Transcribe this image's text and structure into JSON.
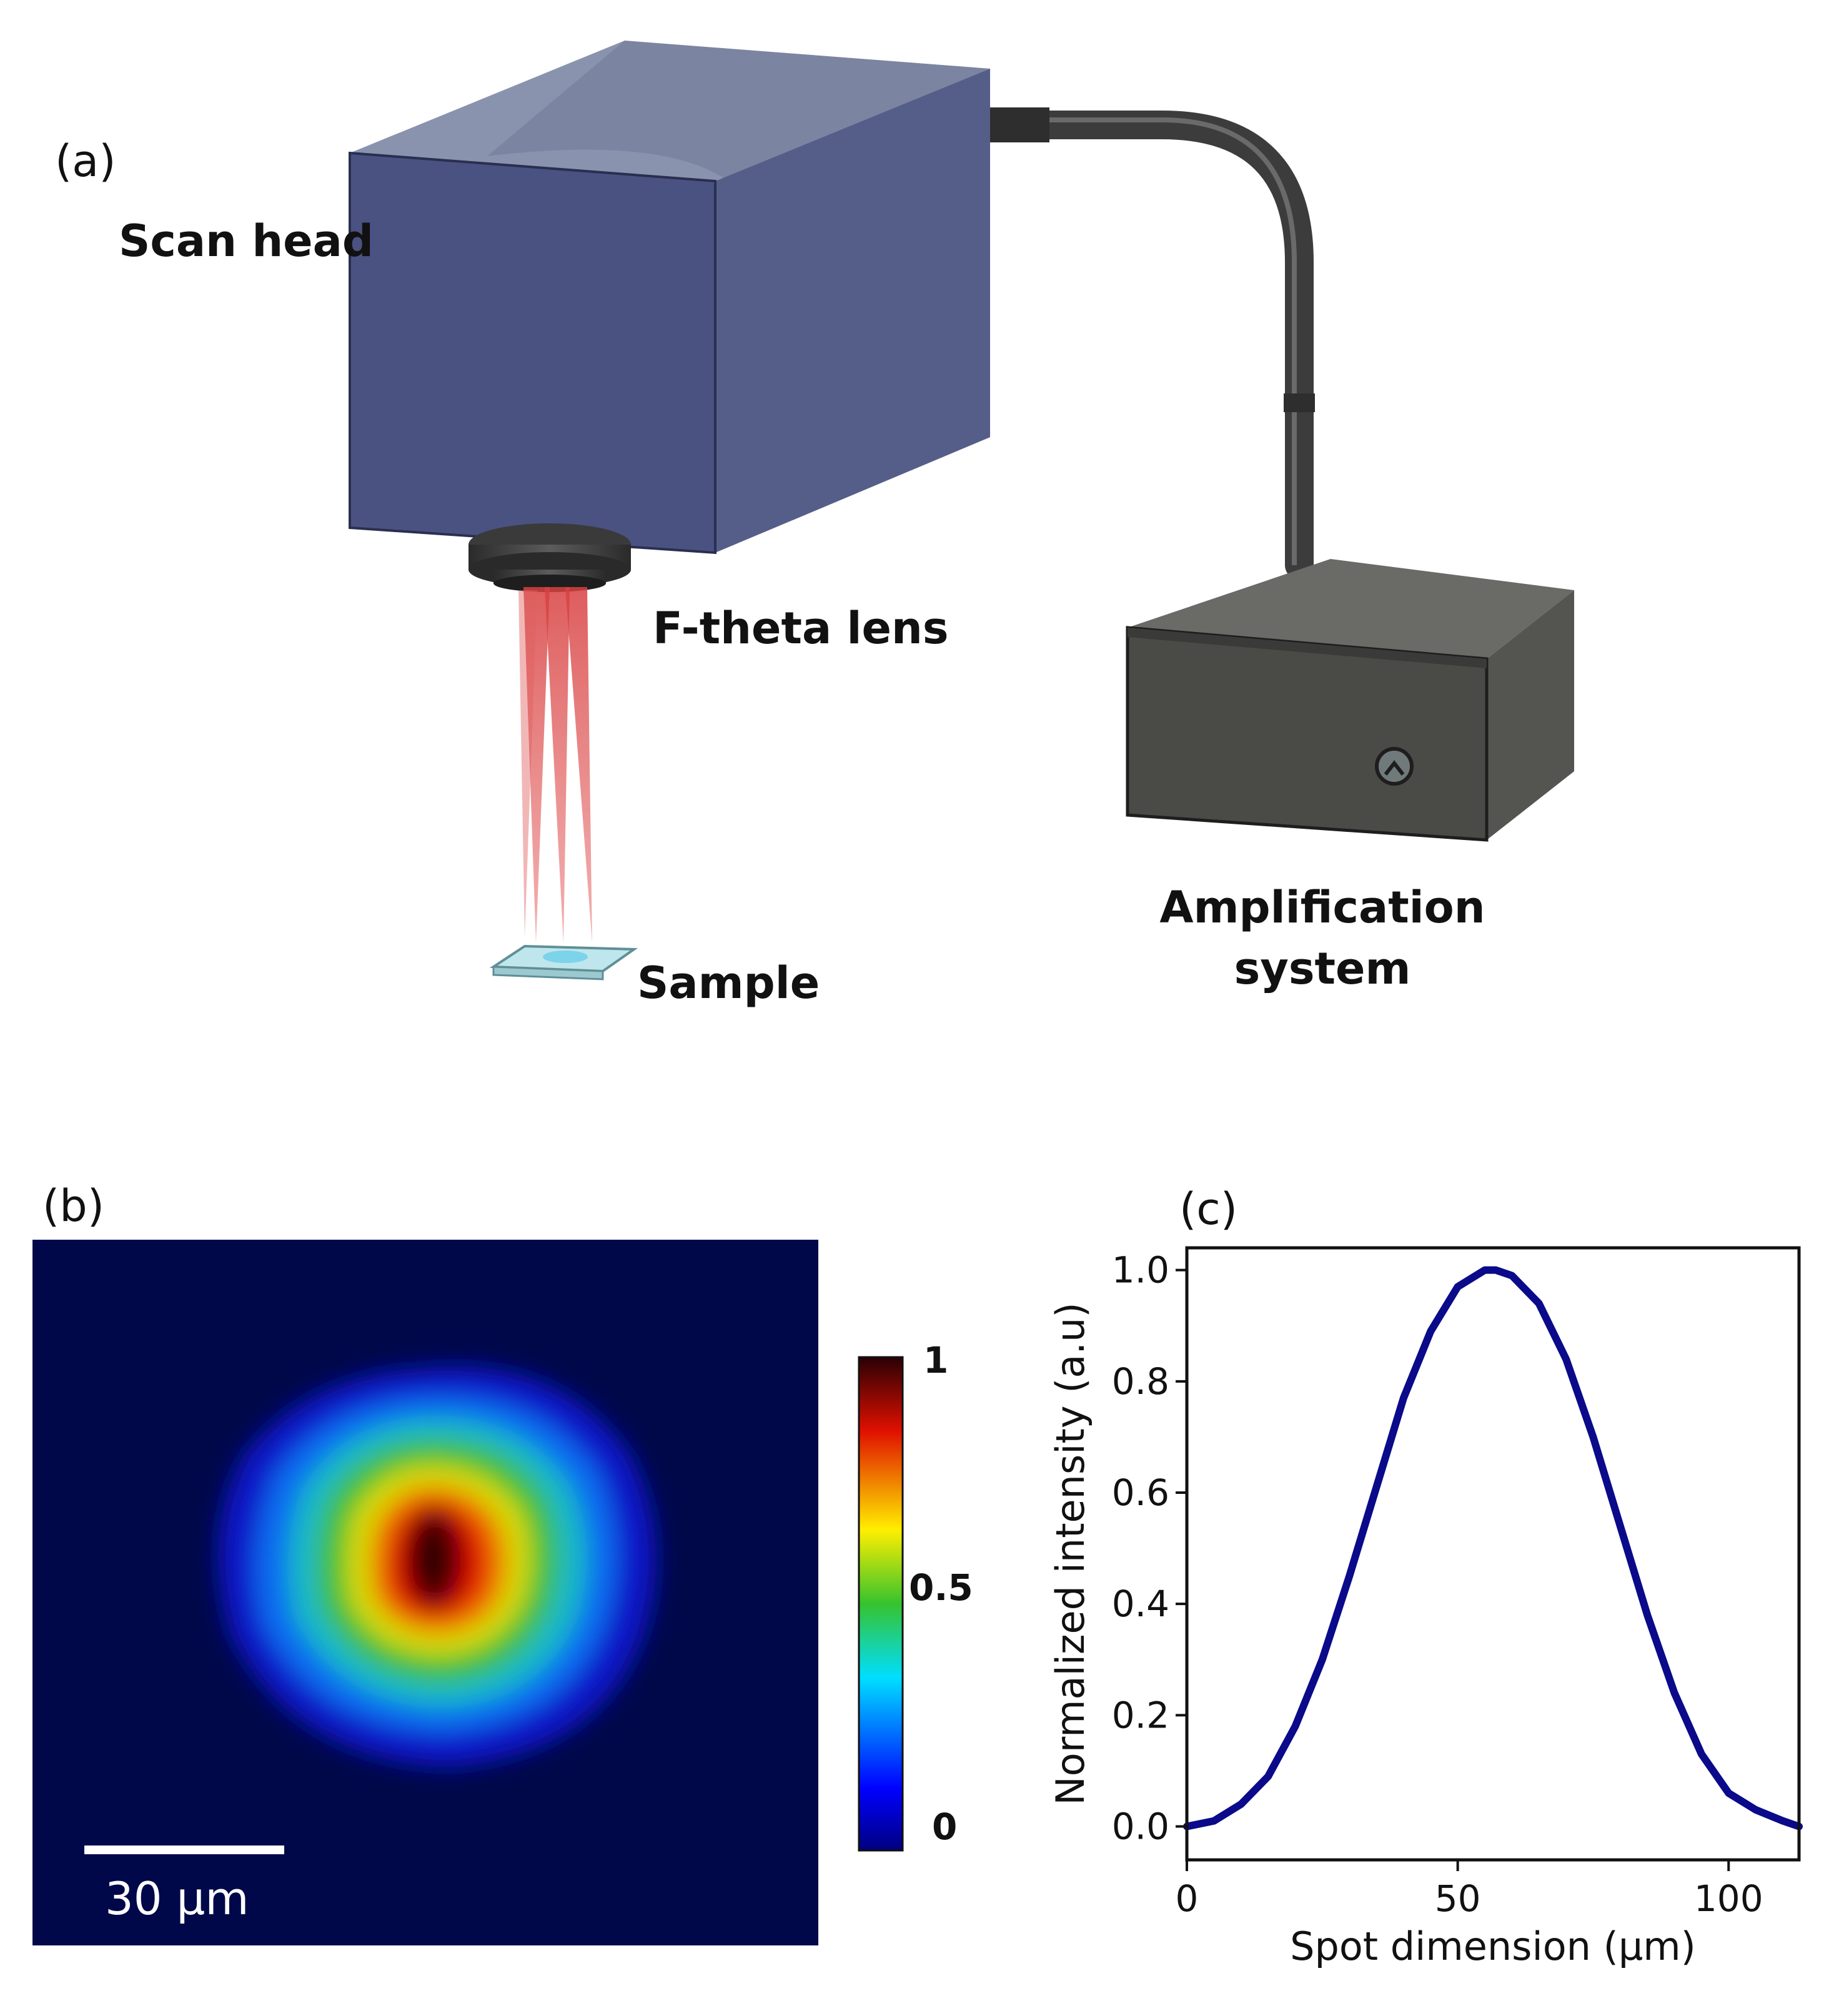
{
  "panel_a": {
    "letter": "(a)",
    "labels": {
      "scan_head": "Scan head",
      "f_theta_lens": "F-theta lens",
      "sample": "Sample",
      "amplification_line1": "Amplification",
      "amplification_line2": "system"
    },
    "colors": {
      "scan_head": "#4a5282",
      "amplifier": "#4a4a46",
      "beam": "#d84040",
      "cable": "#3c3c3c"
    }
  },
  "panel_b": {
    "letter": "(b)",
    "scale_bar_label": "30 µm",
    "colorbar_ticks": [
      "1",
      "0.5",
      "0"
    ],
    "colormap": "jet",
    "background_color": "#00084a"
  },
  "chart_data": {
    "type": "line",
    "panel_letter": "(c)",
    "title": "",
    "xlabel": "Spot dimension (µm)",
    "ylabel": "Normalized intensity (a.u)",
    "xlim": [
      0,
      113
    ],
    "ylim": [
      -0.06,
      1.04
    ],
    "xticks": [
      0,
      50,
      100
    ],
    "yticks": [
      0.0,
      0.2,
      0.4,
      0.6,
      0.8,
      1.0
    ],
    "xtick_labels": [
      "0",
      "50",
      "100"
    ],
    "ytick_labels": [
      "0.0",
      "0.2",
      "0.4",
      "0.6",
      "0.8",
      "1.0"
    ],
    "grid": false,
    "series": [
      {
        "color": "#0a0a8a",
        "x": [
          0,
          5,
          10,
          15,
          20,
          25,
          30,
          35,
          40,
          45,
          50,
          55,
          57,
          60,
          65,
          70,
          75,
          80,
          85,
          90,
          95,
          100,
          105,
          110,
          113
        ],
        "y": [
          0.0,
          0.01,
          0.04,
          0.09,
          0.18,
          0.3,
          0.45,
          0.61,
          0.77,
          0.89,
          0.97,
          1.0,
          1.0,
          0.99,
          0.94,
          0.84,
          0.7,
          0.54,
          0.38,
          0.24,
          0.13,
          0.06,
          0.03,
          0.01,
          0.0
        ]
      }
    ]
  }
}
